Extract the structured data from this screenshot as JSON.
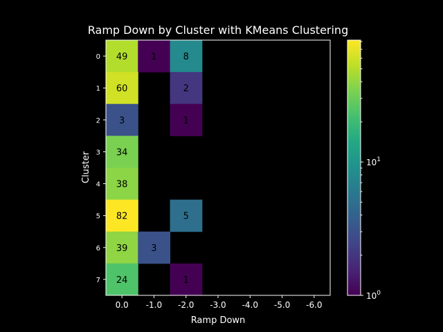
{
  "chart_data": {
    "type": "heatmap",
    "title": "Ramp Down by Cluster with KMeans Clustering",
    "xlabel": "Ramp Down",
    "ylabel": "Cluster",
    "x_categories": [
      "0.0",
      "-1.0",
      "-2.0",
      "-3.0",
      "-4.0",
      "-5.0",
      "-6.0"
    ],
    "y_categories": [
      "0",
      "1",
      "2",
      "3",
      "4",
      "5",
      "6",
      "7"
    ],
    "values": [
      [
        49,
        1,
        8,
        null,
        null,
        null,
        null
      ],
      [
        60,
        null,
        2,
        null,
        null,
        null,
        null
      ],
      [
        3,
        null,
        1,
        null,
        null,
        null,
        null
      ],
      [
        34,
        null,
        null,
        null,
        null,
        null,
        null
      ],
      [
        38,
        null,
        null,
        null,
        null,
        null,
        null
      ],
      [
        82,
        null,
        5,
        null,
        null,
        null,
        null
      ],
      [
        39,
        3,
        null,
        null,
        null,
        null,
        null
      ],
      [
        24,
        null,
        1,
        null,
        null,
        null,
        null
      ]
    ],
    "colormap": "viridis",
    "color_scale": "log",
    "color_range": [
      1,
      82
    ],
    "colorbar_ticks": [
      {
        "value": 1,
        "base": "10",
        "exp": "0"
      },
      {
        "value": 10,
        "base": "10",
        "exp": "1"
      }
    ],
    "background_color": "#000000"
  }
}
